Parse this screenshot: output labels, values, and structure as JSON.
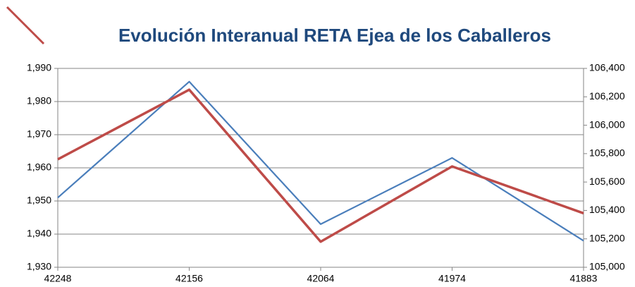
{
  "chart_data": {
    "type": "line",
    "title": "Evolución Interanual RETA Ejea de los Caballeros",
    "categories": [
      "42248",
      "42156",
      "42064",
      "41974",
      "41883"
    ],
    "series": [
      {
        "color": "#4a7ebb",
        "values": [
          1951,
          1986,
          1943,
          1963,
          1938
        ]
      },
      {
        "color": "#be4b48",
        "axis": "y2",
        "values": [
          105760,
          106250,
          105180,
          105710,
          105380
        ]
      }
    ],
    "ylim": [
      1930,
      1990
    ],
    "yticks": [
      {
        "value": 1930,
        "label": "1,930"
      },
      {
        "value": 1940,
        "label": "1,940"
      },
      {
        "value": 1950,
        "label": "1,950"
      },
      {
        "value": 1960,
        "label": "1,960"
      },
      {
        "value": 1970,
        "label": "1,970"
      },
      {
        "value": 1980,
        "label": "1,980"
      },
      {
        "value": 1990,
        "label": "1,990"
      }
    ],
    "y2lim": [
      105000,
      106400
    ],
    "y2ticks": [
      {
        "value": 105000,
        "label": "105,000"
      },
      {
        "value": 105200,
        "label": "105,200"
      },
      {
        "value": 105400,
        "label": "105,400"
      },
      {
        "value": 105600,
        "label": "105,600"
      },
      {
        "value": 105800,
        "label": "105,800"
      },
      {
        "value": 106000,
        "label": "106,000"
      },
      {
        "value": 106200,
        "label": "106,200"
      },
      {
        "value": 106400,
        "label": "106,400"
      }
    ],
    "grid": true
  }
}
